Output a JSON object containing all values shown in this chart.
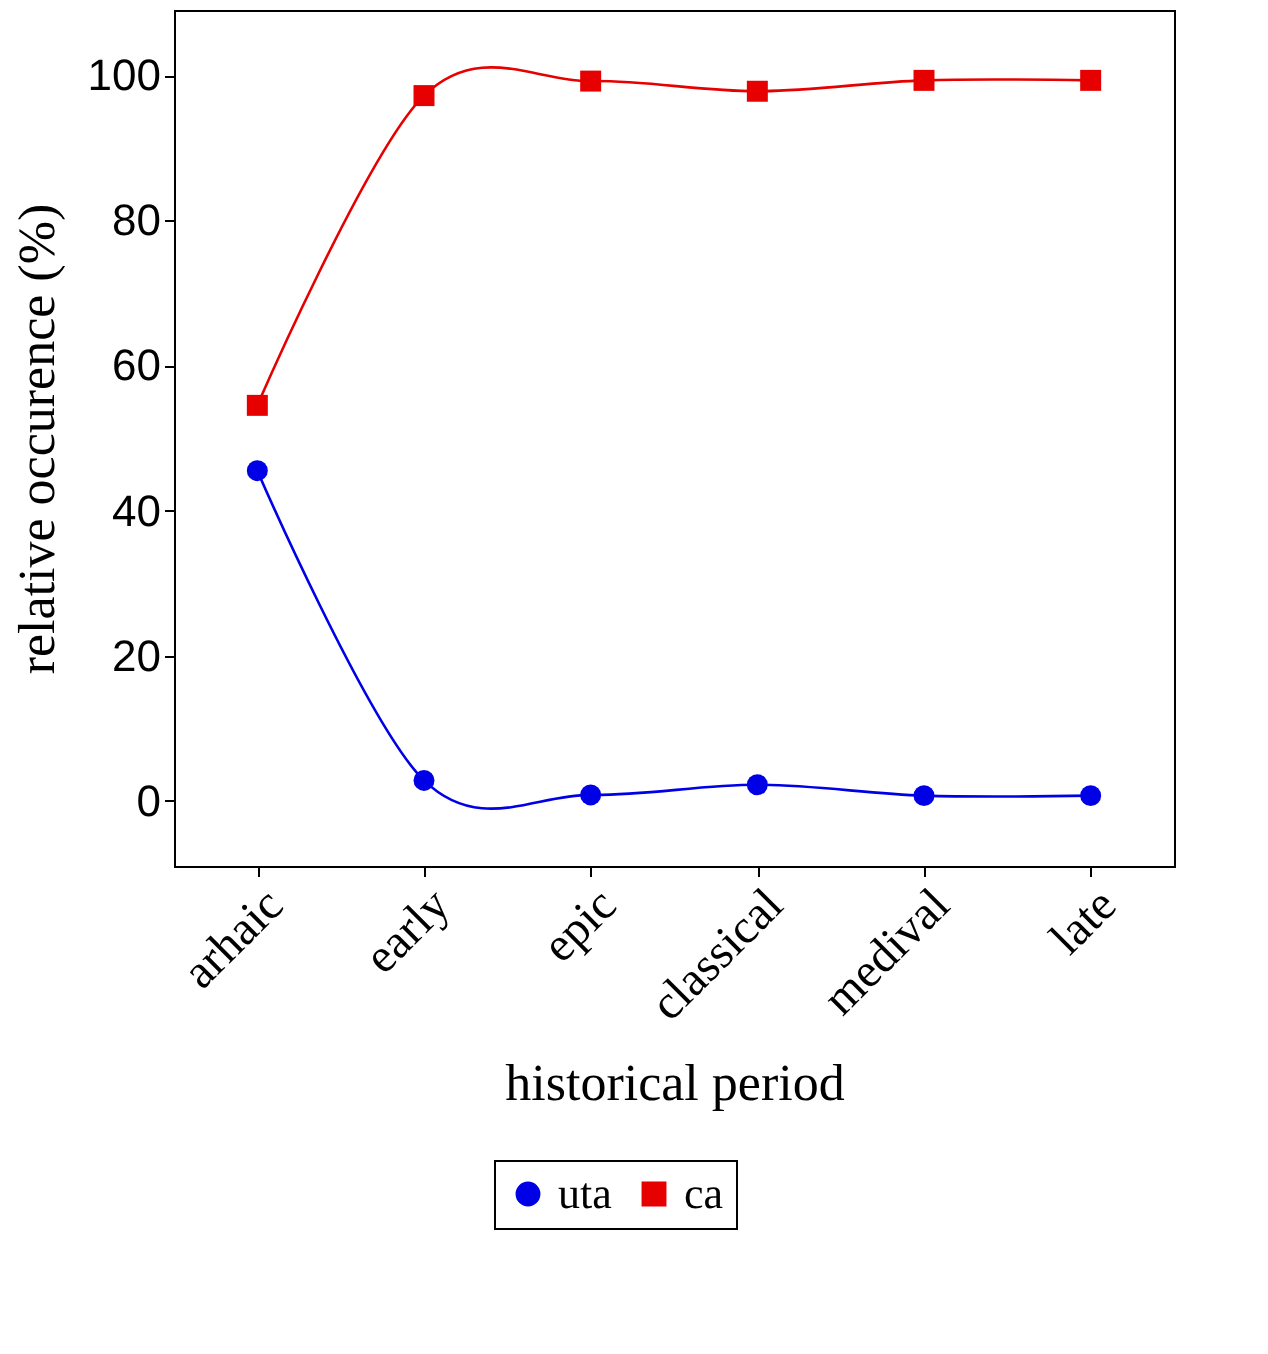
{
  "chart_data": {
    "type": "line",
    "xlabel": "historical period",
    "ylabel": "relative occurence (%)",
    "categories": [
      "arhaic",
      "early",
      "epic",
      "classical",
      "medival",
      "late"
    ],
    "series": [
      {
        "name": "uta",
        "color": "#0000e6",
        "marker": "circle",
        "values": [
          45.5,
          2.8,
          0.8,
          2.2,
          0.7,
          0.7
        ]
      },
      {
        "name": "ca",
        "color": "#e60000",
        "marker": "square",
        "values": [
          54.5,
          97.2,
          99.2,
          97.8,
          99.3,
          99.3
        ]
      }
    ],
    "ylim": [
      -9,
      109
    ],
    "yticks": [
      0,
      20,
      40,
      60,
      80,
      100
    ],
    "grid": false,
    "legend": "bottom",
    "line_style": "solid"
  }
}
